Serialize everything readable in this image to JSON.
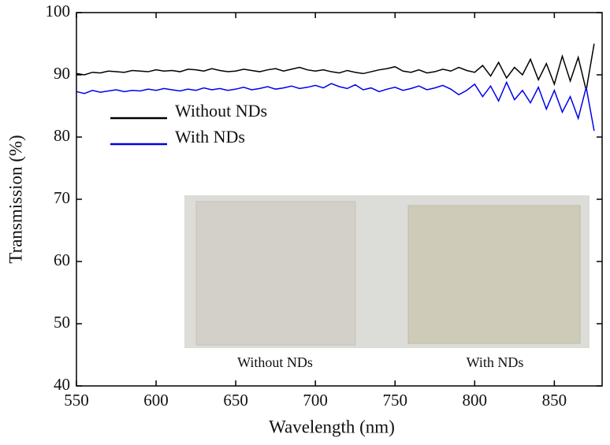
{
  "chart_data": {
    "type": "line",
    "x_label": "Wavelength (nm)",
    "y_label": "Transmission (%)",
    "x": [
      550,
      555,
      560,
      565,
      570,
      575,
      580,
      585,
      590,
      595,
      600,
      605,
      610,
      615,
      620,
      625,
      630,
      635,
      640,
      645,
      650,
      655,
      660,
      665,
      670,
      675,
      680,
      685,
      690,
      695,
      700,
      705,
      710,
      715,
      720,
      725,
      730,
      735,
      740,
      745,
      750,
      755,
      760,
      765,
      770,
      775,
      780,
      785,
      790,
      795,
      800,
      805,
      810,
      815,
      820,
      825,
      830,
      835,
      840,
      845,
      850,
      855,
      860,
      865,
      870,
      875
    ],
    "series": [
      {
        "name": "Without NDs",
        "color": "#000000",
        "values": [
          90.2,
          90.0,
          90.4,
          90.3,
          90.6,
          90.5,
          90.4,
          90.7,
          90.6,
          90.5,
          90.8,
          90.6,
          90.7,
          90.5,
          90.9,
          90.8,
          90.6,
          91.0,
          90.7,
          90.5,
          90.6,
          90.9,
          90.7,
          90.5,
          90.8,
          91.0,
          90.6,
          90.9,
          91.2,
          90.8,
          90.6,
          90.8,
          90.5,
          90.3,
          90.7,
          90.4,
          90.2,
          90.5,
          90.8,
          91.0,
          91.3,
          90.6,
          90.4,
          90.8,
          90.3,
          90.5,
          90.9,
          90.6,
          91.2,
          90.7,
          90.4,
          91.5,
          89.8,
          92.0,
          89.5,
          91.2,
          90.0,
          92.5,
          89.2,
          91.8,
          88.5,
          93.0,
          89.0,
          92.8,
          87.5,
          95.0
        ]
      },
      {
        "name": "With NDs",
        "color": "#0000ee",
        "values": [
          87.3,
          87.0,
          87.5,
          87.2,
          87.4,
          87.6,
          87.3,
          87.5,
          87.4,
          87.7,
          87.5,
          87.8,
          87.6,
          87.4,
          87.7,
          87.5,
          87.9,
          87.6,
          87.8,
          87.5,
          87.7,
          88.0,
          87.6,
          87.8,
          88.1,
          87.7,
          87.9,
          88.2,
          87.8,
          88.0,
          88.3,
          87.9,
          88.6,
          88.1,
          87.8,
          88.4,
          87.6,
          87.9,
          87.3,
          87.7,
          88.0,
          87.5,
          87.8,
          88.2,
          87.6,
          87.9,
          88.3,
          87.7,
          86.8,
          87.5,
          88.5,
          86.5,
          88.2,
          85.8,
          88.8,
          86.0,
          87.5,
          85.5,
          88.0,
          84.5,
          87.5,
          84.0,
          86.5,
          83.0,
          88.0,
          81.0
        ]
      }
    ],
    "xlim": [
      550,
      880
    ],
    "xticks": [
      550,
      600,
      650,
      700,
      750,
      800,
      850
    ],
    "ylim": [
      40,
      100
    ],
    "yticks": [
      40,
      50,
      60,
      70,
      80,
      90,
      100
    ],
    "annotations": [
      "Without NDs",
      "With NDs"
    ]
  }
}
